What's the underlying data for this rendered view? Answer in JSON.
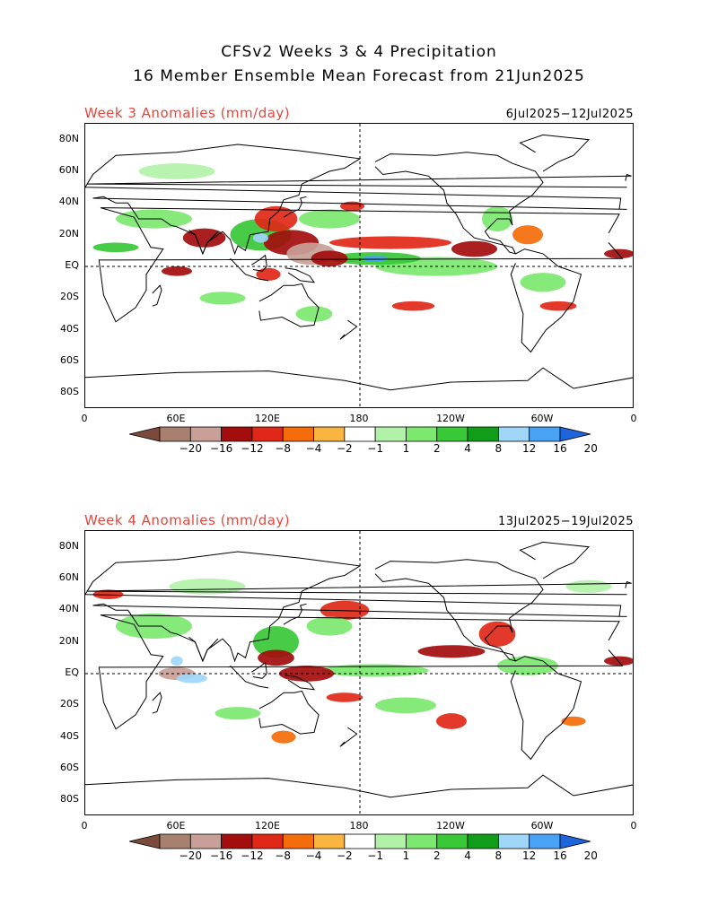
{
  "header": {
    "title_line1": "CFSv2 Weeks 3 & 4 Precipitation",
    "title_line2": "16 Member Ensemble Mean Forecast from 21Jun2025"
  },
  "panels": [
    {
      "title": "Week 3 Anomalies (mm/day)",
      "date_range": "6Jul2025−12Jul2025",
      "anomaly_blobs": [
        {
          "lon": 135,
          "lat": 15,
          "rx": 18,
          "ry": 8,
          "level": -8
        },
        {
          "lon": 148,
          "lat": 8,
          "rx": 16,
          "ry": 7,
          "level": -12
        },
        {
          "lon": 160,
          "lat": 5,
          "rx": 12,
          "ry": 5,
          "level": -8
        },
        {
          "lon": 125,
          "lat": 30,
          "rx": 14,
          "ry": 8,
          "level": -4
        },
        {
          "lon": 78,
          "lat": 18,
          "rx": 14,
          "ry": 6,
          "level": -8
        },
        {
          "lon": 60,
          "lat": -3,
          "rx": 10,
          "ry": 3,
          "level": -8
        },
        {
          "lon": 120,
          "lat": -5,
          "rx": 8,
          "ry": 4,
          "level": -4
        },
        {
          "lon": 200,
          "lat": 15,
          "rx": 40,
          "ry": 4,
          "level": -4
        },
        {
          "lon": 255,
          "lat": 11,
          "rx": 15,
          "ry": 5,
          "level": -8
        },
        {
          "lon": 350,
          "lat": 8,
          "rx": 10,
          "ry": 3,
          "level": -8
        },
        {
          "lon": 215,
          "lat": -25,
          "rx": 14,
          "ry": 3,
          "level": -4
        },
        {
          "lon": 310,
          "lat": -25,
          "rx": 12,
          "ry": 3,
          "level": -4
        },
        {
          "lon": 290,
          "lat": 20,
          "rx": 10,
          "ry": 6,
          "level": -2
        },
        {
          "lon": 175,
          "lat": 38,
          "rx": 8,
          "ry": 3,
          "level": -4
        },
        {
          "lon": 115,
          "lat": 20,
          "rx": 20,
          "ry": 10,
          "level": 4
        },
        {
          "lon": 115,
          "lat": 18,
          "rx": 5,
          "ry": 3,
          "level": 12
        },
        {
          "lon": 190,
          "lat": 5,
          "rx": 30,
          "ry": 4,
          "level": 4
        },
        {
          "lon": 190,
          "lat": 5,
          "rx": 8,
          "ry": 2,
          "level": 16
        },
        {
          "lon": 45,
          "lat": 30,
          "rx": 25,
          "ry": 6,
          "level": 2
        },
        {
          "lon": 20,
          "lat": 12,
          "rx": 15,
          "ry": 3,
          "level": 4
        },
        {
          "lon": 160,
          "lat": 30,
          "rx": 20,
          "ry": 6,
          "level": 2
        },
        {
          "lon": 230,
          "lat": 0,
          "rx": 40,
          "ry": 6,
          "level": 2
        },
        {
          "lon": 270,
          "lat": 30,
          "rx": 10,
          "ry": 8,
          "level": 2
        },
        {
          "lon": 90,
          "lat": -20,
          "rx": 15,
          "ry": 4,
          "level": 2
        },
        {
          "lon": 300,
          "lat": -10,
          "rx": 15,
          "ry": 6,
          "level": 2
        },
        {
          "lon": 60,
          "lat": 60,
          "rx": 25,
          "ry": 5,
          "level": 1
        },
        {
          "lon": 150,
          "lat": -30,
          "rx": 12,
          "ry": 5,
          "level": 2
        }
      ]
    },
    {
      "title": "Week 4 Anomalies (mm/day)",
      "date_range": "13Jul2025−19Jul2025",
      "anomaly_blobs": [
        {
          "lon": 60,
          "lat": 0,
          "rx": 12,
          "ry": 4,
          "level": -12
        },
        {
          "lon": 125,
          "lat": 10,
          "rx": 12,
          "ry": 5,
          "level": -8
        },
        {
          "lon": 145,
          "lat": 0,
          "rx": 18,
          "ry": 5,
          "level": -8
        },
        {
          "lon": 170,
          "lat": -15,
          "rx": 12,
          "ry": 3,
          "level": -4
        },
        {
          "lon": 170,
          "lat": 40,
          "rx": 16,
          "ry": 6,
          "level": -4
        },
        {
          "lon": 240,
          "lat": 14,
          "rx": 22,
          "ry": 4,
          "level": -8
        },
        {
          "lon": 270,
          "lat": 25,
          "rx": 12,
          "ry": 8,
          "level": -4
        },
        {
          "lon": 350,
          "lat": 8,
          "rx": 10,
          "ry": 3,
          "level": -8
        },
        {
          "lon": 240,
          "lat": -30,
          "rx": 10,
          "ry": 5,
          "level": -4
        },
        {
          "lon": 15,
          "lat": 50,
          "rx": 10,
          "ry": 3,
          "level": -4
        },
        {
          "lon": 130,
          "lat": -40,
          "rx": 8,
          "ry": 4,
          "level": -2
        },
        {
          "lon": 320,
          "lat": -30,
          "rx": 8,
          "ry": 3,
          "level": -2
        },
        {
          "lon": 125,
          "lat": 20,
          "rx": 15,
          "ry": 10,
          "level": 4
        },
        {
          "lon": 70,
          "lat": -3,
          "rx": 10,
          "ry": 3,
          "level": 12
        },
        {
          "lon": 60,
          "lat": 8,
          "rx": 4,
          "ry": 3,
          "level": 12
        },
        {
          "lon": 190,
          "lat": 2,
          "rx": 35,
          "ry": 4,
          "level": 2
        },
        {
          "lon": 45,
          "lat": 30,
          "rx": 25,
          "ry": 8,
          "level": 2
        },
        {
          "lon": 160,
          "lat": 30,
          "rx": 15,
          "ry": 6,
          "level": 2
        },
        {
          "lon": 290,
          "lat": 5,
          "rx": 20,
          "ry": 6,
          "level": 2
        },
        {
          "lon": 210,
          "lat": -20,
          "rx": 20,
          "ry": 5,
          "level": 2
        },
        {
          "lon": 100,
          "lat": -25,
          "rx": 15,
          "ry": 4,
          "level": 2
        },
        {
          "lon": 80,
          "lat": 55,
          "rx": 25,
          "ry": 5,
          "level": 1
        },
        {
          "lon": 330,
          "lat": 55,
          "rx": 15,
          "ry": 4,
          "level": 1
        }
      ]
    }
  ],
  "axes": {
    "lat_ticks": [
      "80N",
      "60N",
      "40N",
      "20N",
      "EQ",
      "20S",
      "40S",
      "60S",
      "80S"
    ],
    "lat_values": [
      80,
      60,
      40,
      20,
      0,
      -20,
      -40,
      -60,
      -80
    ],
    "lon_ticks": [
      "0",
      "60E",
      "120E",
      "180",
      "120W",
      "60W",
      "0"
    ],
    "lon_values": [
      0,
      60,
      120,
      180,
      240,
      300,
      360
    ],
    "lat_range": [
      -90,
      90
    ],
    "lon_range": [
      0,
      360
    ]
  },
  "colorbar": {
    "labels": [
      "−20",
      "−16",
      "−12",
      "−8",
      "−4",
      "−2",
      "−1",
      "1",
      "2",
      "4",
      "8",
      "12",
      "16",
      "20"
    ],
    "level_colors": {
      "-20": "#7a4a3c",
      "-16": "#a88070",
      "-12": "#c8a098",
      "-8": "#a30d0d",
      "-4": "#e02818",
      "-2": "#f56c0a",
      "-1": "#f9b540",
      "1": "#b2f2a8",
      "2": "#7ce870",
      "4": "#38c838",
      "8": "#119d1a",
      "12": "#a0d6f8",
      "16": "#4aa2f5",
      "20": "#1e64dc"
    },
    "swatches": [
      "#7a4a3c",
      "#a88070",
      "#c8a098",
      "#a30d0d",
      "#e02818",
      "#f56c0a",
      "#f9b540",
      "#ffffff",
      "#b2f2a8",
      "#7ce870",
      "#38c838",
      "#119d1a",
      "#a0d6f8",
      "#4aa2f5",
      "#1e64dc"
    ]
  }
}
